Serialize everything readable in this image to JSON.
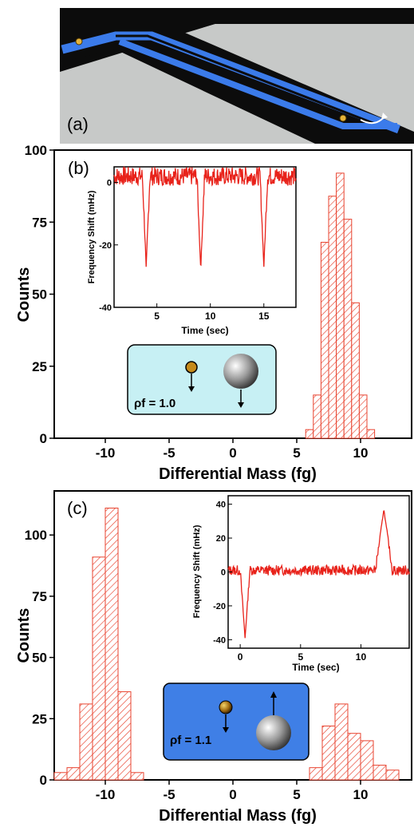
{
  "panel_a": {
    "label": "(a)"
  },
  "colors": {
    "bar": "#e8432f",
    "inset_line": "#e8221a",
    "channel": "#3b7bea",
    "box_b": "#c7f0f4",
    "box_c": "#3f7fe6",
    "chip_dark": "#0c0c0c",
    "chip_light": "#c7c9c8"
  },
  "chart_data": [
    {
      "type": "bar",
      "panel_label": "(b)",
      "xlabel": "Differential Mass (fg)",
      "ylabel": "Counts",
      "xlim": [
        -14,
        14
      ],
      "ylim": [
        0,
        100
      ],
      "xticks": [
        -10,
        -5,
        0,
        5,
        10
      ],
      "yticks": [
        0,
        25,
        50,
        75,
        100
      ],
      "bin_width": 0.6,
      "bins": [
        6.0,
        6.6,
        7.2,
        7.8,
        8.4,
        9.0,
        9.6,
        10.2,
        10.8
      ],
      "values": [
        3,
        15,
        68,
        84,
        92,
        76,
        47,
        15,
        3
      ],
      "annotation": "ρf = 1.0",
      "inset": {
        "type": "line",
        "xlabel": "Time (sec)",
        "ylabel": "Frequency Shift (mHz)",
        "xlim": [
          1,
          18
        ],
        "ylim": [
          -40,
          5
        ],
        "xticks": [
          5,
          10,
          15
        ],
        "yticks": [
          0,
          -20,
          -40
        ],
        "baseline": 2,
        "dips": [
          {
            "t": 4.0,
            "depth": -27
          },
          {
            "t": 9.1,
            "depth": -28
          },
          {
            "t": 15.0,
            "depth": -27
          }
        ]
      }
    },
    {
      "type": "bar",
      "panel_label": "(c)",
      "xlabel": "Differential Mass (fg)",
      "ylabel": "Counts",
      "xlim": [
        -14,
        14
      ],
      "ylim": [
        0,
        118
      ],
      "xticks": [
        -10,
        -5,
        0,
        5,
        10
      ],
      "yticks": [
        0,
        25,
        50,
        75,
        100
      ],
      "bin_width": 1.0,
      "bins": [
        -13.5,
        -12.5,
        -11.5,
        -10.5,
        -9.5,
        -8.5,
        -7.5,
        6.5,
        7.5,
        8.5,
        9.5,
        10.5,
        11.5,
        12.5
      ],
      "values": [
        3,
        5,
        31,
        91,
        111,
        36,
        3,
        5,
        22,
        31,
        19,
        16,
        6,
        4
      ],
      "annotation": "ρf = 1.1",
      "inset": {
        "type": "line",
        "xlabel": "Time (sec)",
        "ylabel": "Frequency Shift (mHz)",
        "xlim": [
          -1,
          14
        ],
        "ylim": [
          -45,
          45
        ],
        "xticks": [
          0,
          5,
          10
        ],
        "yticks": [
          40,
          20,
          0,
          -20,
          -40
        ],
        "baseline": 1,
        "dip": {
          "t": 0.4,
          "depth": -39
        },
        "peak": {
          "t": 11.9,
          "height": 37
        }
      }
    }
  ]
}
